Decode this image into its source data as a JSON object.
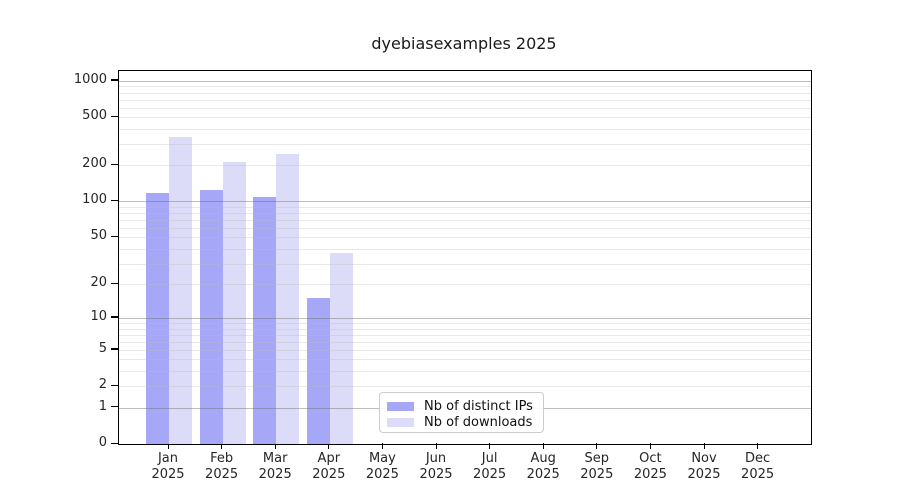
{
  "title": "dyebiasexamples 2025",
  "chart_data": {
    "type": "bar",
    "title": "dyebiasexamples 2025",
    "categories": [
      "Jan",
      "Feb",
      "Mar",
      "Apr",
      "May",
      "Jun",
      "Jul",
      "Aug",
      "Sep",
      "Oct",
      "Nov",
      "Dec"
    ],
    "category_year": "2025",
    "series": [
      {
        "name": "Nb of distinct IPs",
        "color": "#a7a7f7",
        "values": [
          118,
          125,
          110,
          15,
          0,
          0,
          0,
          0,
          0,
          0,
          0,
          0
        ]
      },
      {
        "name": "Nb of downloads",
        "color": "#dcdcf8",
        "values": [
          345,
          213,
          248,
          37,
          0,
          0,
          0,
          0,
          0,
          0,
          0,
          0
        ]
      }
    ],
    "yscale": "log10(1+value)",
    "yticks": [
      0,
      1,
      2,
      5,
      10,
      20,
      50,
      100,
      200,
      500,
      1000
    ],
    "ytick_labels": [
      "0",
      "1",
      "2",
      "5",
      "10",
      "20",
      "50",
      "100",
      "200",
      "500",
      "1000"
    ],
    "major_gridlines": [
      1,
      10,
      100,
      1000
    ],
    "minor_gridlines": [
      2,
      3,
      4,
      5,
      6,
      7,
      8,
      9,
      20,
      30,
      40,
      50,
      60,
      70,
      80,
      90,
      200,
      300,
      400,
      500,
      600,
      700,
      800,
      900
    ],
    "ylim": [
      0,
      1210
    ],
    "xlabel": "",
    "ylabel": "",
    "grid": "on",
    "legend_position": "bottom-center"
  },
  "legend": {
    "items": [
      {
        "label": "Nb of distinct IPs",
        "color": "#a7a7f7"
      },
      {
        "label": "Nb of downloads",
        "color": "#dcdcf8"
      }
    ]
  },
  "colors": {
    "bar_distinct_ips": "#a7a7f7",
    "bar_downloads": "#dcdcf8",
    "grid_major": "#b3b3b3",
    "grid_minor": "#e6e6e6",
    "axis_spine": "#000000",
    "text": "#262626",
    "background": "#ffffff"
  }
}
